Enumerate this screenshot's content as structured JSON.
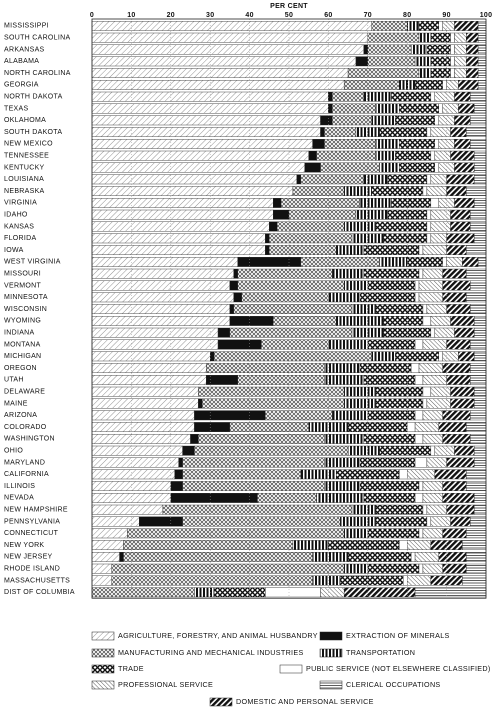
{
  "chart_data": {
    "type": "stacked-bar-horizontal",
    "x_label": "PER CENT",
    "xlim": [
      0,
      100
    ],
    "xticks": [
      0,
      10,
      20,
      30,
      40,
      50,
      60,
      70,
      80,
      90,
      100
    ],
    "grid": true,
    "categories": [
      "MISSISSIPPI",
      "SOUTH CAROLINA",
      "ARKANSAS",
      "ALABAMA",
      "NORTH CAROLINA",
      "GEORGIA",
      "NORTH DAKOTA",
      "TEXAS",
      "OKLAHOMA",
      "SOUTH DAKOTA",
      "NEW MEXICO",
      "TENNESSEE",
      "KENTUCKY",
      "LOUISIANA",
      "NEBRASKA",
      "VIRGINIA",
      "IDAHO",
      "KANSAS",
      "FLORIDA",
      "IOWA",
      "WEST VIRGINIA",
      "MISSOURI",
      "VERMONT",
      "MINNESOTA",
      "WISCONSIN",
      "WYOMING",
      "INDIANA",
      "MONTANA",
      "MICHIGAN",
      "OREGON",
      "UTAH",
      "DELAWARE",
      "MAINE",
      "ARIZONA",
      "COLORADO",
      "WASHINGTON",
      "OHIO",
      "MARYLAND",
      "CALIFORNIA",
      "ILLINOIS",
      "NEVADA",
      "NEW HAMPSHIRE",
      "PENNSYLVANIA",
      "CONNECTICUT",
      "NEW YORK",
      "NEW JERSEY",
      "RHODE ISLAND",
      "MASSACHUSETTS",
      "DIST OF COLUMBIA"
    ],
    "series": [
      {
        "name": "AGRICULTURE, FORESTRY, AND ANIMAL HUSBANDRY",
        "values": [
          71,
          70,
          69,
          67,
          65,
          64,
          60,
          60,
          58,
          58,
          56,
          55,
          54,
          52,
          51,
          46,
          46,
          45,
          44,
          44,
          37,
          36,
          35,
          36,
          35,
          35,
          32,
          32,
          30,
          29,
          29,
          27,
          27,
          26,
          26,
          25,
          23,
          22,
          21,
          20,
          20,
          18,
          12,
          9,
          8,
          7,
          5,
          5,
          0
        ]
      },
      {
        "name": "EXTRACTION OF MINERALS",
        "values": [
          0,
          0,
          1,
          3,
          0,
          0,
          1,
          1,
          3,
          1,
          3,
          2,
          4,
          1,
          0,
          2,
          4,
          2,
          1,
          1,
          16,
          1,
          2,
          2,
          1,
          11,
          3,
          11,
          1,
          0,
          8,
          0,
          1,
          18,
          9,
          2,
          3,
          1,
          2,
          3,
          22,
          0,
          11,
          0,
          0,
          1,
          0,
          0,
          0
        ]
      },
      {
        "name": "MANUFACTURING AND MECHANICAL INDUSTRIES",
        "values": [
          9,
          13,
          11,
          12,
          18,
          14,
          8,
          11,
          10,
          8,
          13,
          15,
          15,
          16,
          13,
          20,
          17,
          17,
          21,
          17,
          20,
          24,
          27,
          22,
          30,
          16,
          31,
          17,
          40,
          30,
          22,
          37,
          36,
          17,
          20,
          32,
          39,
          36,
          30,
          36,
          15,
          48,
          40,
          55,
          43,
          48,
          59,
          51,
          26
        ]
      },
      {
        "name": "TRANSPORTATION",
        "values": [
          3,
          3,
          4,
          4,
          3,
          4,
          7,
          6,
          6,
          6,
          6,
          5,
          5,
          6,
          7,
          8,
          8,
          8,
          8,
          7,
          7,
          8,
          6,
          8,
          6,
          12,
          8,
          10,
          6,
          9,
          10,
          8,
          8,
          9,
          10,
          10,
          8,
          9,
          9,
          9,
          12,
          6,
          9,
          6,
          9,
          9,
          6,
          7,
          5
        ]
      },
      {
        "name": "TRADE",
        "values": [
          5,
          5,
          6,
          5,
          5,
          7,
          10,
          10,
          10,
          12,
          9,
          9,
          9,
          10,
          13,
          10,
          10,
          13,
          11,
          14,
          9,
          14,
          12,
          14,
          12,
          10,
          12,
          12,
          11,
          13,
          13,
          12,
          12,
          12,
          15,
          13,
          13,
          14,
          16,
          15,
          13,
          12,
          13,
          13,
          18,
          16,
          13,
          16,
          13
        ]
      },
      {
        "name": "PUBLIC SERVICE (NOT ELSEWHERE CLASSIFIED)",
        "values": [
          1,
          1,
          1,
          1,
          1,
          1,
          1,
          1,
          1,
          1,
          1,
          1,
          1,
          1,
          1,
          2,
          1,
          1,
          1,
          1,
          1,
          1,
          1,
          1,
          1,
          2,
          1,
          2,
          1,
          2,
          2,
          2,
          1,
          2,
          2,
          2,
          1,
          3,
          2,
          1,
          2,
          1,
          1,
          1,
          2,
          1,
          1,
          1,
          14
        ]
      },
      {
        "name": "PROFESSIONAL SERVICE",
        "values": [
          3,
          3,
          3,
          3,
          3,
          3,
          5,
          4,
          4,
          5,
          4,
          4,
          4,
          4,
          5,
          4,
          5,
          5,
          4,
          6,
          4,
          5,
          6,
          6,
          5,
          5,
          5,
          6,
          4,
          6,
          6,
          5,
          6,
          5,
          6,
          5,
          5,
          5,
          7,
          5,
          5,
          5,
          5,
          5,
          6,
          6,
          5,
          6,
          6
        ]
      },
      {
        "name": "DOMESTIC AND PERSONAL SERVICE",
        "values": [
          6,
          3,
          3,
          3,
          3,
          5,
          4,
          4,
          4,
          4,
          4,
          6,
          5,
          7,
          5,
          5,
          5,
          5,
          7,
          5,
          4,
          6,
          7,
          6,
          6,
          6,
          5,
          6,
          4,
          7,
          6,
          6,
          6,
          7,
          7,
          7,
          5,
          7,
          8,
          6,
          8,
          7,
          5,
          6,
          8,
          7,
          6,
          8,
          18
        ]
      },
      {
        "name": "CLERICAL OCCUPATIONS",
        "values": [
          2,
          2,
          2,
          2,
          2,
          2,
          4,
          3,
          4,
          5,
          4,
          3,
          3,
          3,
          5,
          3,
          4,
          4,
          3,
          5,
          2,
          5,
          4,
          5,
          4,
          3,
          3,
          4,
          3,
          4,
          4,
          3,
          3,
          4,
          5,
          4,
          3,
          3,
          5,
          5,
          3,
          3,
          4,
          5,
          6,
          5,
          5,
          6,
          18
        ]
      }
    ]
  }
}
